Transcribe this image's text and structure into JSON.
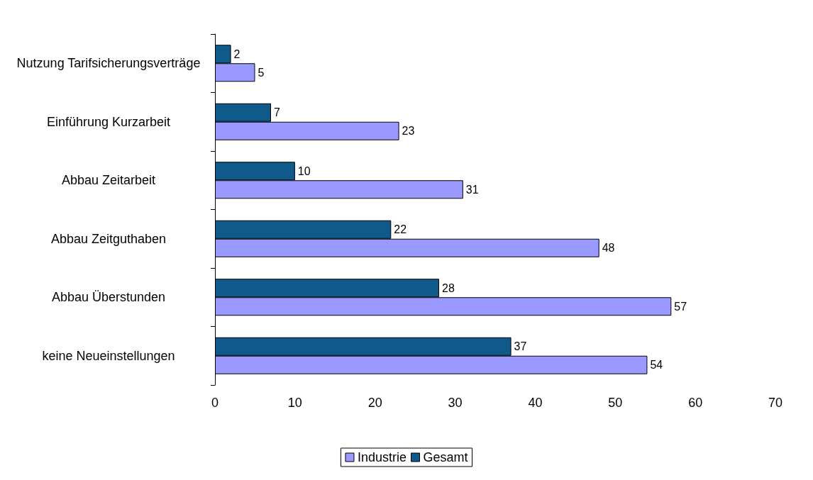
{
  "chart_data": {
    "type": "bar",
    "orientation": "horizontal",
    "categories": [
      "Nutzung Tarifsicherungsverträge",
      "Einführung Kurzarbeit",
      "Abbau Zeitarbeit",
      "Abbau Zeitguthaben",
      "Abbau Überstunden",
      "keine Neueinstellungen"
    ],
    "series": [
      {
        "name": "Industrie",
        "color": "#9999ff",
        "values": [
          5,
          23,
          31,
          48,
          57,
          54
        ]
      },
      {
        "name": "Gesamt",
        "color": "#0f5a8a",
        "values": [
          2,
          7,
          10,
          22,
          28,
          37
        ]
      }
    ],
    "xlim": [
      0,
      70
    ],
    "xticks": [
      0,
      10,
      20,
      30,
      40,
      50,
      60,
      70
    ],
    "grid": false,
    "legend": "bottom",
    "data_labels": true
  }
}
